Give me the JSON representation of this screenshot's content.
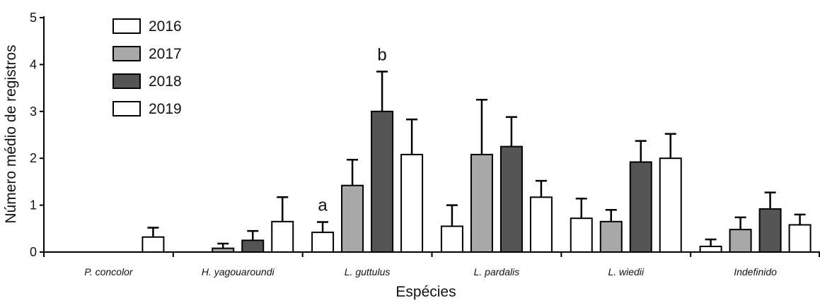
{
  "chart_data": {
    "type": "bar",
    "title": "",
    "xlabel": "Espécies",
    "ylabel": "Número médio de registros",
    "ylim": [
      0,
      5
    ],
    "yticks": [
      0,
      1,
      2,
      3,
      4,
      5
    ],
    "legend_position": "top-left",
    "categories": [
      "P. concolor",
      "H. yagouaroundi",
      "L. guttulus",
      "L. pardalis",
      "L. wiedii",
      "Indefinido"
    ],
    "series": [
      {
        "name": "2016",
        "color": "#ffffff",
        "values": [
          0,
          0,
          0.42,
          0.55,
          0.72,
          0.12
        ],
        "errors": [
          0,
          0,
          0.22,
          0.45,
          0.42,
          0.15
        ]
      },
      {
        "name": "2017",
        "color": "#a8a8a8",
        "values": [
          0,
          0.08,
          1.42,
          2.08,
          0.65,
          0.48
        ],
        "errors": [
          0,
          0.1,
          0.55,
          1.17,
          0.25,
          0.26
        ]
      },
      {
        "name": "2018",
        "color": "#555555",
        "values": [
          0,
          0.25,
          3.0,
          2.25,
          1.92,
          0.92
        ],
        "errors": [
          0,
          0.2,
          0.85,
          0.63,
          0.45,
          0.35
        ]
      },
      {
        "name": "2019",
        "color": "#ffffff",
        "values": [
          0.32,
          0.65,
          2.08,
          1.17,
          2.0,
          0.58
        ],
        "errors": [
          0.2,
          0.52,
          0.75,
          0.35,
          0.52,
          0.22
        ]
      }
    ],
    "annotations": [
      {
        "text": "a",
        "category": "L. guttulus",
        "series": "2016"
      },
      {
        "text": "b",
        "category": "L. guttulus",
        "series": "2018"
      }
    ]
  }
}
